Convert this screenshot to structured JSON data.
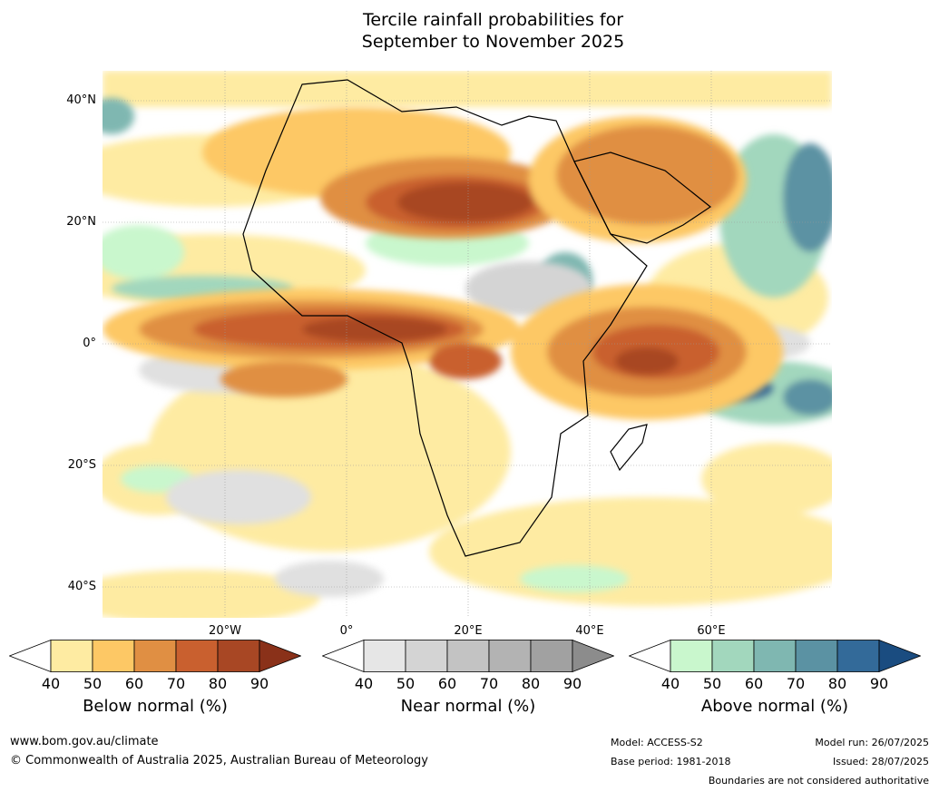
{
  "title_line1": "Tercile rainfall probabilities for",
  "title_line2": "September to November 2025",
  "map": {
    "lat_labels": [
      "40°N",
      "20°N",
      "0°",
      "20°S",
      "40°S"
    ],
    "lon_labels": [
      "20°W",
      "0°",
      "20°E",
      "40°E",
      "60°E"
    ]
  },
  "legends": [
    {
      "title": "Below normal (%)",
      "ticks": [
        "40",
        "50",
        "60",
        "70",
        "80",
        "90"
      ],
      "colors": [
        "#ffffff",
        "#feeba2",
        "#fdc865",
        "#e08f43",
        "#c9602f",
        "#a84724",
        "#8a3119"
      ]
    },
    {
      "title": "Near normal (%)",
      "ticks": [
        "40",
        "50",
        "60",
        "70",
        "80",
        "90"
      ],
      "colors": [
        "#ffffff",
        "#e6e6e6",
        "#d4d4d4",
        "#c3c3c3",
        "#b3b3b3",
        "#a1a1a1",
        "#8c8c8c"
      ]
    },
    {
      "title": "Above normal (%)",
      "ticks": [
        "40",
        "50",
        "60",
        "70",
        "80",
        "90"
      ],
      "colors": [
        "#ffffff",
        "#c9f7cd",
        "#a2d7bd",
        "#7fb7b1",
        "#5b92a3",
        "#336a99",
        "#1a4c80"
      ]
    }
  ],
  "footer": {
    "website": "www.bom.gov.au/climate",
    "copyright": "© Commonwealth of Australia 2025, Australian Bureau of Meteorology",
    "model": "Model: ACCESS-S2",
    "base_period": "Base period: 1981-2018",
    "model_run": "Model run: 26/07/2025",
    "issued": "Issued: 28/07/2025",
    "disclaimer": "Boundaries are not considered authoritative"
  }
}
